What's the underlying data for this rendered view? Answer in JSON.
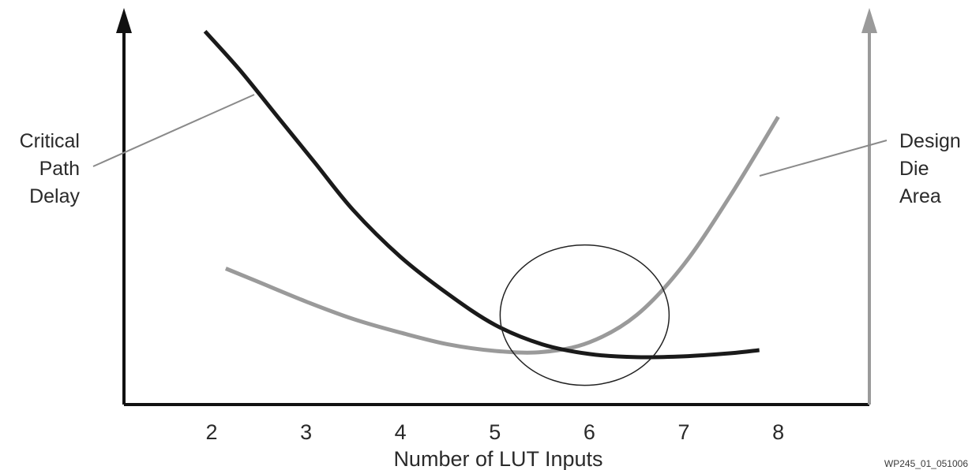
{
  "chart_data": {
    "type": "line",
    "title": "",
    "xlabel": "Number of LUT Inputs",
    "ylabel": "",
    "x_ticks": [
      2,
      3,
      4,
      5,
      6,
      7,
      8
    ],
    "xlim": [
      1.1,
      9.0
    ],
    "ylim": [
      0,
      10
    ],
    "grid": false,
    "series": [
      {
        "name": "Critical Path Delay",
        "axis": "left",
        "color": "#1a1a1a",
        "x": [
          1.93,
          2.3,
          2.7,
          3.1,
          3.5,
          4.0,
          4.5,
          5.0,
          5.5,
          6.0,
          6.5,
          7.0,
          7.5,
          7.8
        ],
        "y": [
          9.6,
          8.6,
          7.4,
          6.2,
          5.0,
          3.8,
          2.85,
          2.05,
          1.55,
          1.3,
          1.22,
          1.24,
          1.32,
          1.4
        ]
      },
      {
        "name": "Design Die Area",
        "axis": "right",
        "color": "#9a9a9a",
        "x": [
          2.15,
          2.5,
          3.0,
          3.5,
          4.0,
          4.5,
          5.0,
          5.5,
          6.0,
          6.5,
          7.0,
          7.5,
          8.0
        ],
        "y": [
          3.5,
          3.15,
          2.65,
          2.2,
          1.85,
          1.55,
          1.38,
          1.35,
          1.6,
          2.3,
          3.6,
          5.4,
          7.4
        ]
      }
    ],
    "labels": {
      "left": [
        "Critical",
        "Path",
        "Delay"
      ],
      "right": [
        "Design",
        "Die",
        "Area"
      ]
    },
    "annotation": {
      "shape": "ellipse",
      "center": [
        5.95,
        2.3
      ]
    },
    "axis_colors": {
      "left": "#111111",
      "right": "#9a9a9a"
    },
    "figure_id": "WP245_01_051006"
  }
}
